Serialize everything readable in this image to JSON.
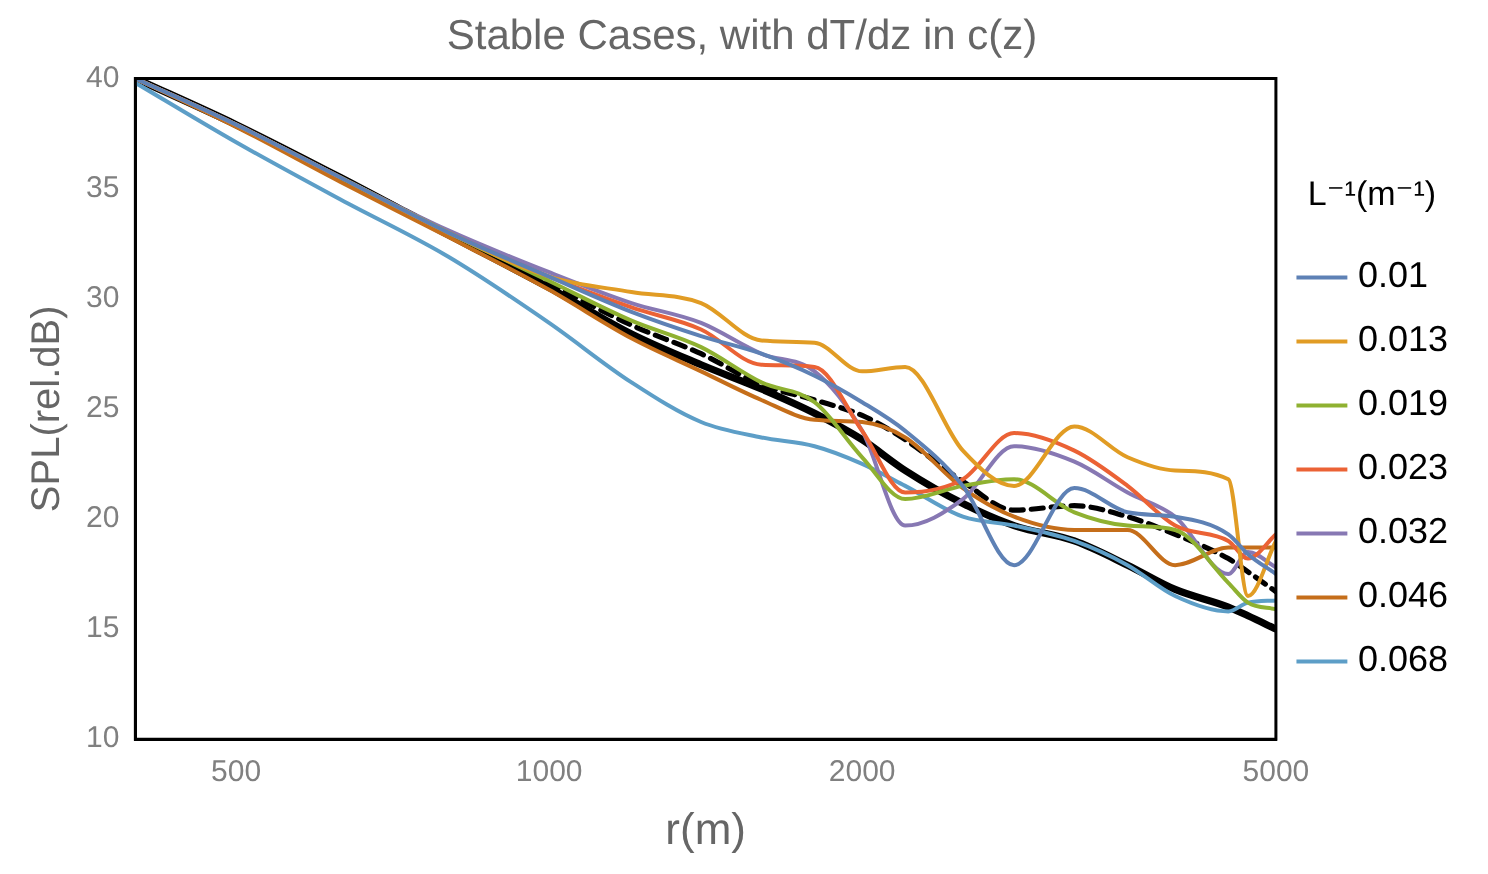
{
  "chart_data": {
    "type": "line",
    "title": "Stable Cases, with dT/dz in c(z)",
    "xlabel": "r(m)",
    "ylabel": "SPL(rel.dB)",
    "legend_title": "L⁻¹(m⁻¹)",
    "log": "x",
    "xlim": [
      400,
      5000
    ],
    "xticks": [
      500,
      1000,
      2000,
      5000
    ],
    "ylim": [
      10,
      40
    ],
    "yticks": [
      10,
      15,
      20,
      25,
      30,
      35,
      40
    ],
    "grid": false,
    "legend": "right",
    "marker": "none",
    "x": [
      400,
      500,
      630,
      800,
      1000,
      1200,
      1400,
      1600,
      1800,
      2000,
      2200,
      2500,
      2800,
      3200,
      3600,
      4000,
      4500,
      4700,
      5000
    ],
    "series": [
      {
        "name": "0.01",
        "color": "#5e81b5",
        "values": [
          40,
          37.9,
          35.5,
          33.0,
          31.0,
          29.4,
          28.3,
          27.5,
          26.5,
          25.3,
          24.0,
          21.5,
          17.9,
          21.4,
          20.3,
          20.1,
          19.3,
          18.4,
          17.5
        ]
      },
      {
        "name": "0.013",
        "color": "#e19c24",
        "values": [
          40,
          37.9,
          35.5,
          33.0,
          31.0,
          30.3,
          29.8,
          28.1,
          28.0,
          26.7,
          26.9,
          23.1,
          21.5,
          24.2,
          22.8,
          22.2,
          21.8,
          16.5,
          19.0
        ]
      },
      {
        "name": "0.019",
        "color": "#8fb131",
        "values": [
          null,
          null,
          35.5,
          33.0,
          30.8,
          29.0,
          27.8,
          26.2,
          25.3,
          22.8,
          20.9,
          21.5,
          21.8,
          20.3,
          19.7,
          19.5,
          17.1,
          16.2,
          15.9
        ]
      },
      {
        "name": "0.023",
        "color": "#eb6235",
        "values": [
          40,
          37.9,
          35.5,
          33.0,
          31.0,
          29.6,
          28.6,
          27.0,
          26.9,
          24.0,
          21.2,
          21.8,
          23.9,
          23.1,
          21.5,
          19.7,
          19.0,
          18.2,
          19.3
        ]
      },
      {
        "name": "0.032",
        "color": "#8778b3",
        "values": [
          40,
          37.9,
          35.5,
          33.1,
          31.2,
          29.8,
          28.9,
          27.5,
          26.7,
          24.0,
          19.7,
          20.9,
          23.3,
          22.6,
          21.2,
          20.1,
          17.5,
          18.5,
          17.8
        ]
      },
      {
        "name": "0.046",
        "color": "#c56e1a",
        "values": [
          40,
          37.8,
          35.3,
          32.8,
          30.4,
          28.2,
          26.7,
          25.4,
          24.5,
          24.4,
          23.7,
          21.4,
          20.1,
          19.5,
          19.5,
          17.9,
          18.7,
          18.7,
          18.7
        ]
      },
      {
        "name": "0.068",
        "color": "#5d9ec7",
        "values": [
          39.8,
          37.1,
          34.5,
          31.9,
          28.9,
          26.2,
          24.4,
          23.7,
          23.3,
          22.5,
          21.5,
          20.1,
          19.7,
          19.0,
          17.9,
          16.5,
          15.8,
          16.2,
          16.3
        ]
      },
      {
        "color": "#000000",
        "values": [
          40,
          37.9,
          35.5,
          32.9,
          30.5,
          28.4,
          27.0,
          25.9,
          24.8,
          23.6,
          22.2,
          20.7,
          19.7,
          19.0,
          17.9,
          16.8,
          16.0,
          15.6,
          15.0
        ]
      },
      {
        "color": "#000000",
        "line_style": "dashed",
        "values": [
          40,
          37.9,
          35.5,
          33.0,
          30.7,
          28.8,
          27.5,
          26.1,
          25.4,
          24.7,
          23.6,
          21.7,
          20.4,
          20.6,
          20.1,
          19.3,
          18.2,
          17.6,
          16.7
        ]
      }
    ]
  }
}
